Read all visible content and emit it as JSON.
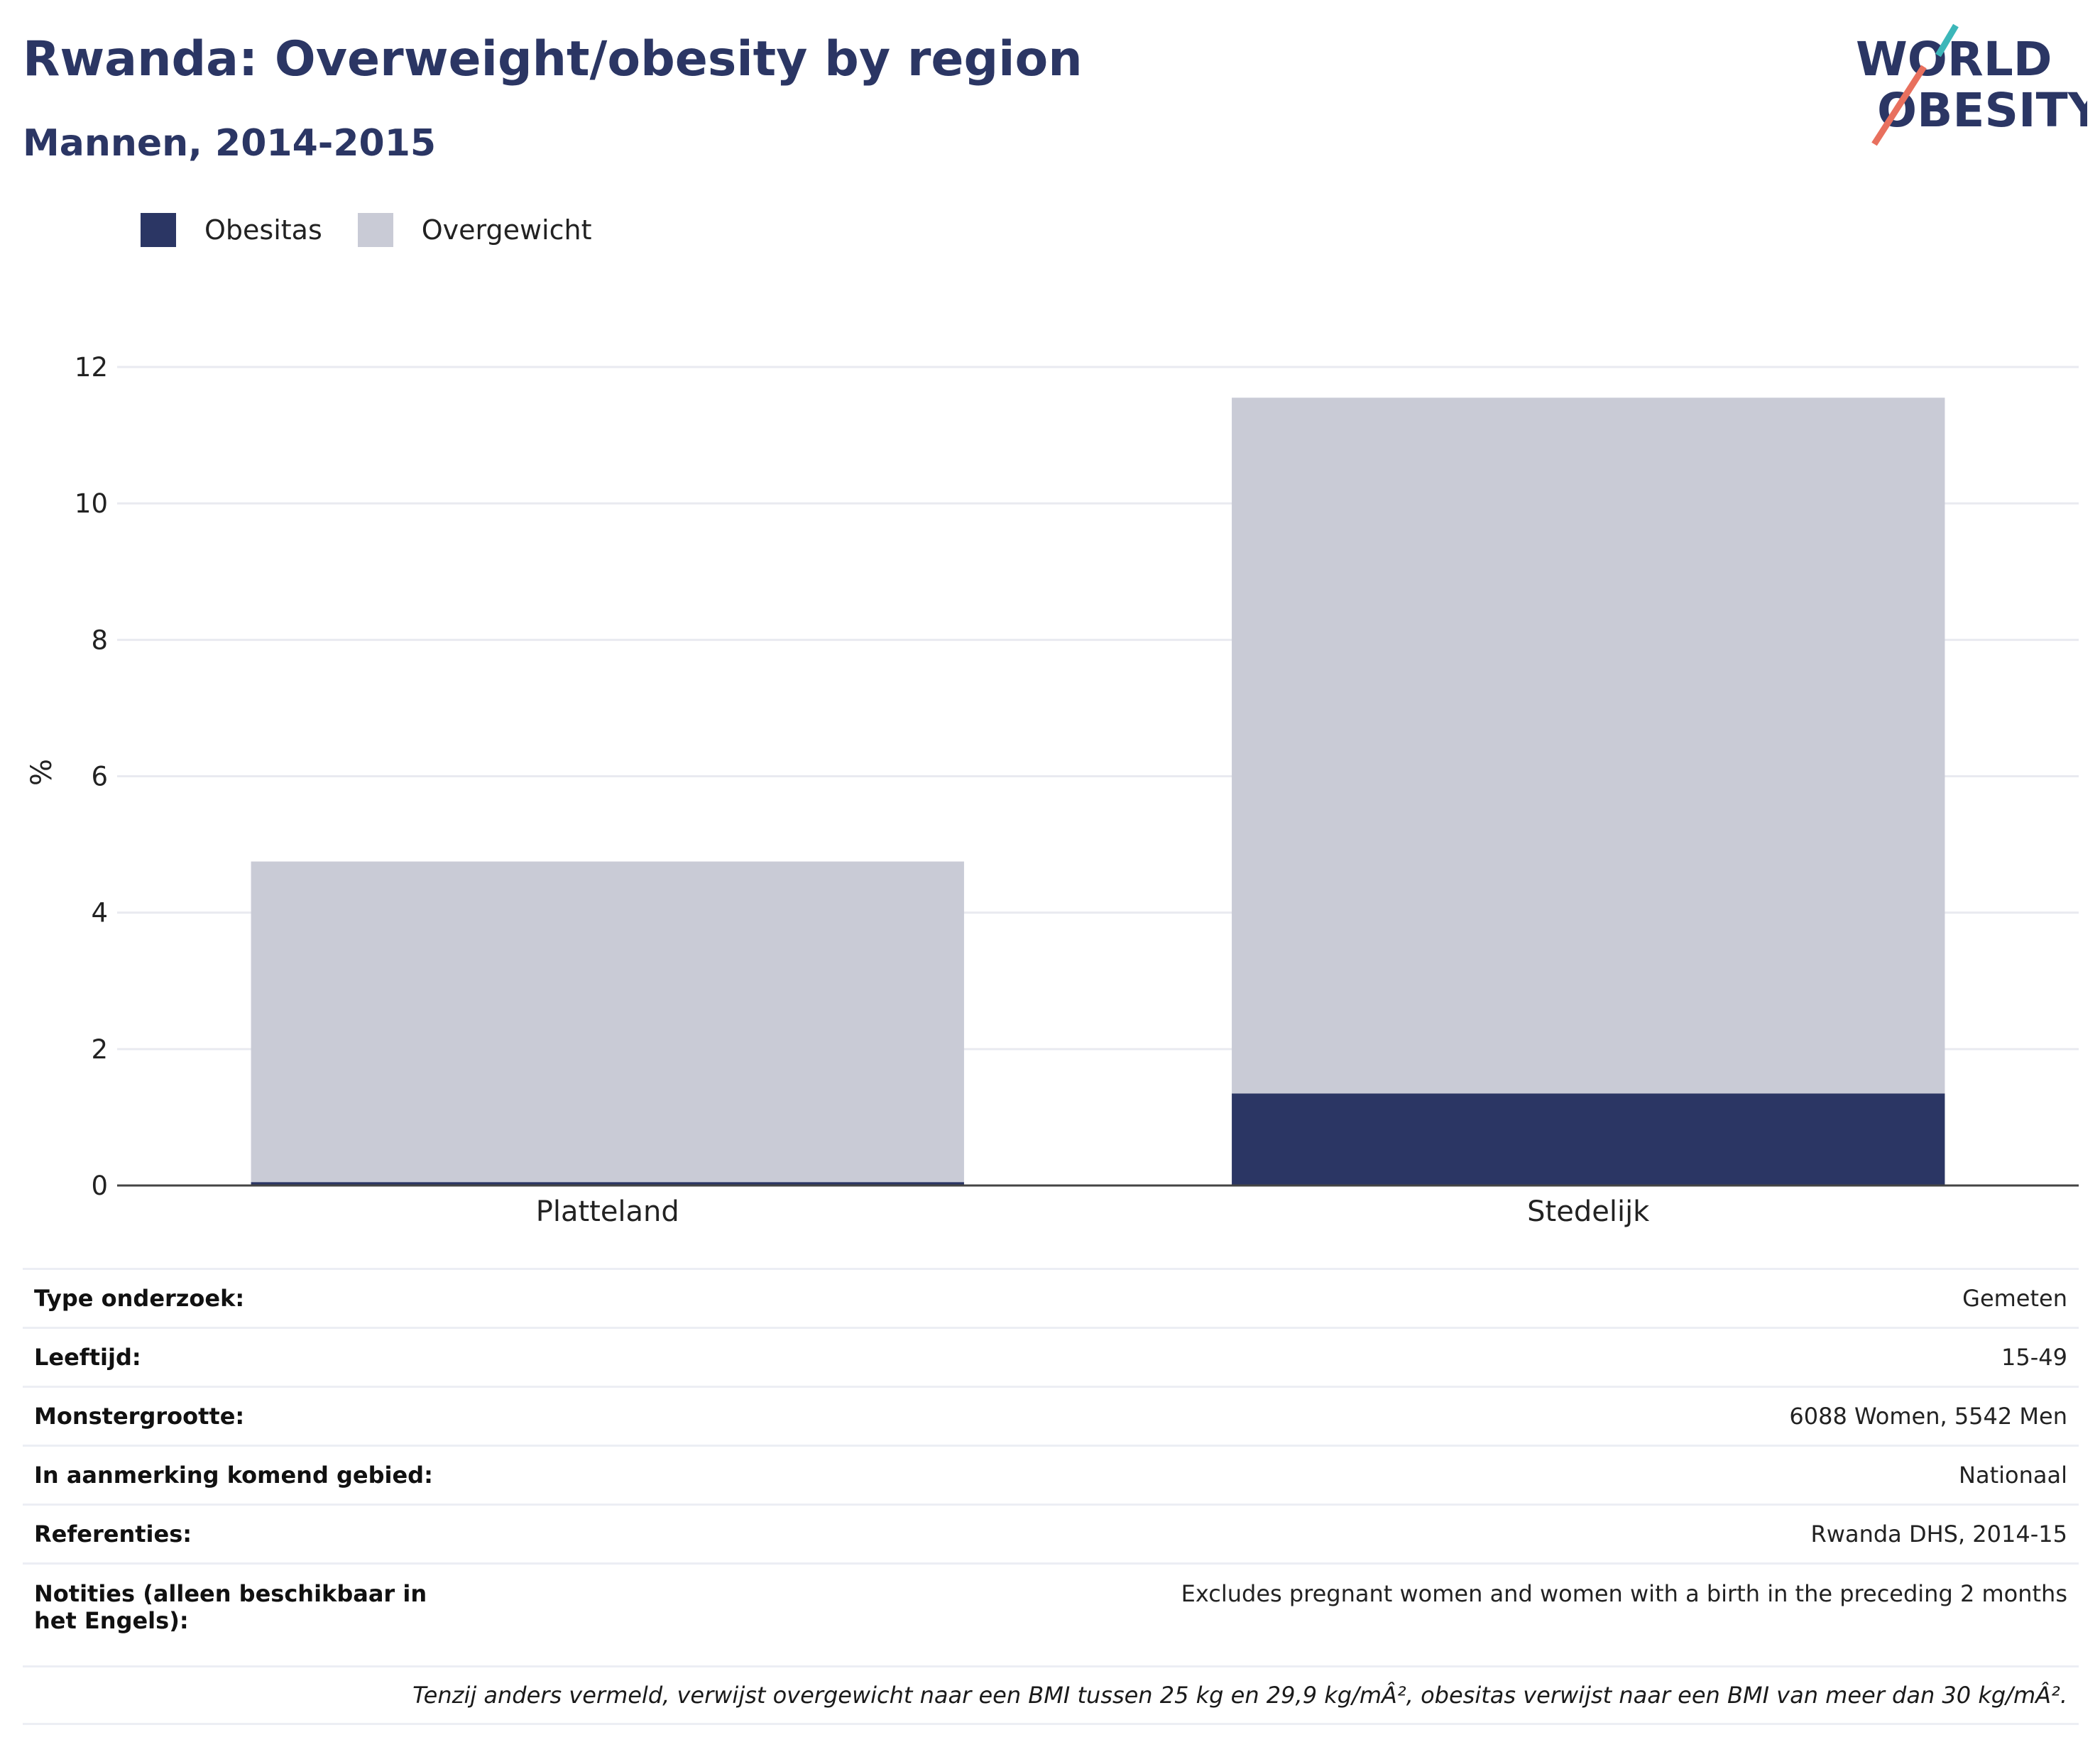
{
  "header": {
    "title": "Rwanda: Overweight/obesity by region",
    "subtitle": "Mannen, 2014-2015"
  },
  "logo": {
    "line1": "WORLD",
    "line2": "OBESITY",
    "colors": {
      "text": "#2b3664",
      "accent_teal": "#3cb7b9",
      "accent_coral": "#e8705e"
    }
  },
  "legend": [
    {
      "label": "Obesitas",
      "color": "#2b3664"
    },
    {
      "label": "Overgewicht",
      "color": "#c9cbd6"
    }
  ],
  "chart_data": {
    "type": "bar",
    "stacked": true,
    "categories": [
      "Platteland",
      "Stedelijk"
    ],
    "series": [
      {
        "name": "Obesitas",
        "color": "#2b3664",
        "values": [
          0.05,
          1.35
        ]
      },
      {
        "name": "Overgewicht",
        "color": "#c9cbd6",
        "values": [
          4.7,
          10.2
        ]
      }
    ],
    "ylabel": "%",
    "ylim": [
      0,
      12
    ],
    "yticks": [
      0,
      2,
      4,
      6,
      8,
      10,
      12
    ],
    "grid": true,
    "legend_position": "top-left"
  },
  "info": {
    "rows": [
      {
        "key": "Type onderzoek:",
        "value": "Gemeten"
      },
      {
        "key": "Leeftijd:",
        "value": "15-49"
      },
      {
        "key": "Monstergrootte:",
        "value": "6088 Women, 5542 Men"
      },
      {
        "key": "In aanmerking komend gebied:",
        "value": "Nationaal"
      },
      {
        "key": "Referenties:",
        "value": "Rwanda DHS, 2014-15"
      },
      {
        "key": "Notities (alleen beschikbaar in het Engels):",
        "value": "Excludes pregnant women and women with a birth in the preceding 2 months"
      }
    ],
    "footnote": "Tenzij anders vermeld, verwijst overgewicht naar een BMI tussen 25 kg en 29,9 kg/mÂ², obesitas verwijst naar een BMI van meer dan 30 kg/mÂ²."
  }
}
